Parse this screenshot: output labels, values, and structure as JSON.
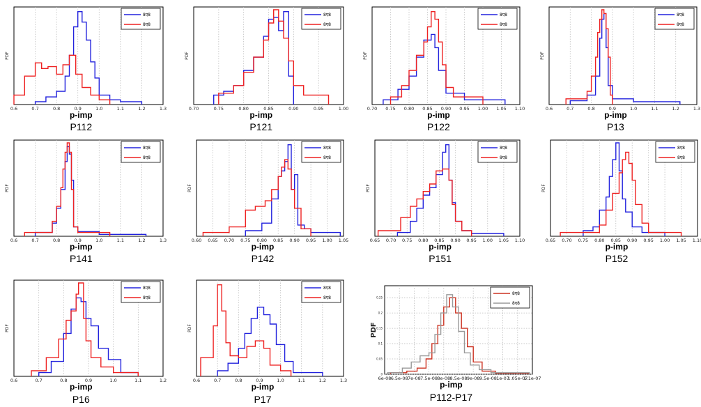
{
  "legend_labels": [
    "8ए8",
    "8ए8"
  ],
  "colors": {
    "blue": "#2222dd",
    "red": "#ee2222",
    "orange_red": "#cc3322",
    "gray": "#999999"
  },
  "chart_data": [
    {
      "id": "P112",
      "type": "histogram",
      "title": "P112",
      "xlabel": "p-imp",
      "ylabel": "PDF",
      "xlim": [
        0.6,
        1.3
      ],
      "xticks": [
        0.6,
        0.7,
        0.8,
        0.9,
        1.0,
        1.1,
        1.2,
        1.3
      ],
      "tick_labels": [
        "0.6",
        "0.7",
        "0.8",
        "0.9",
        "1.0",
        "1.1",
        "1.2",
        "1.3"
      ],
      "ymax": 1.0,
      "series": [
        {
          "color": "blue",
          "edges": [
            0.7,
            0.75,
            0.8,
            0.84,
            0.86,
            0.88,
            0.9,
            0.92,
            0.94,
            0.96,
            0.98,
            1.0,
            1.05,
            1.1,
            1.2
          ],
          "values": [
            0.03,
            0.08,
            0.14,
            0.3,
            0.52,
            0.82,
            0.98,
            0.87,
            0.68,
            0.45,
            0.28,
            0.1,
            0.05,
            0.03
          ]
        },
        {
          "color": "red",
          "edges": [
            0.6,
            0.65,
            0.7,
            0.73,
            0.76,
            0.8,
            0.83,
            0.86,
            0.89,
            0.92,
            0.96,
            1.0,
            1.05
          ],
          "values": [
            0.1,
            0.3,
            0.44,
            0.38,
            0.4,
            0.32,
            0.42,
            0.52,
            0.32,
            0.18,
            0.1,
            0.05
          ]
        }
      ]
    },
    {
      "id": "P121",
      "type": "histogram",
      "title": "P121",
      "xlabel": "p-imp",
      "ylabel": "PDF",
      "xlim": [
        0.7,
        1.0
      ],
      "xticks": [
        0.7,
        0.75,
        0.8,
        0.85,
        0.9,
        0.95,
        1.0
      ],
      "tick_labels": [
        "0.70",
        "0.75",
        "0.80",
        "0.85",
        "0.90",
        "0.95",
        "1.00"
      ],
      "ymax": 1.0,
      "series": [
        {
          "color": "blue",
          "edges": [
            0.74,
            0.76,
            0.78,
            0.8,
            0.82,
            0.84,
            0.85,
            0.86,
            0.87,
            0.88,
            0.89,
            0.9
          ],
          "values": [
            0.1,
            0.14,
            0.2,
            0.36,
            0.5,
            0.72,
            0.9,
            0.92,
            0.78,
            0.98,
            0.3
          ]
        },
        {
          "color": "red",
          "edges": [
            0.75,
            0.78,
            0.8,
            0.82,
            0.84,
            0.85,
            0.86,
            0.87,
            0.88,
            0.89,
            0.9,
            0.92,
            0.97
          ],
          "values": [
            0.12,
            0.2,
            0.34,
            0.5,
            0.68,
            0.86,
            1.0,
            0.88,
            0.7,
            0.46,
            0.2,
            0.1
          ]
        }
      ]
    },
    {
      "id": "P122",
      "type": "histogram",
      "title": "P122",
      "xlabel": "p-imp",
      "ylabel": "PDF",
      "xlim": [
        0.7,
        1.1
      ],
      "xticks": [
        0.7,
        0.75,
        0.8,
        0.85,
        0.9,
        0.95,
        1.0,
        1.05,
        1.1
      ],
      "tick_labels": [
        "0.70",
        "0.75",
        "0.80",
        "0.85",
        "0.90",
        "0.95",
        "1.00",
        "1.05",
        "1.10"
      ],
      "ymax": 1.0,
      "series": [
        {
          "color": "blue",
          "edges": [
            0.73,
            0.77,
            0.8,
            0.82,
            0.84,
            0.86,
            0.87,
            0.88,
            0.9,
            0.95,
            1.06
          ],
          "values": [
            0.05,
            0.16,
            0.3,
            0.5,
            0.68,
            0.74,
            0.6,
            0.36,
            0.12,
            0.05
          ]
        },
        {
          "color": "red",
          "edges": [
            0.75,
            0.78,
            0.8,
            0.82,
            0.84,
            0.85,
            0.86,
            0.87,
            0.88,
            0.89,
            0.9,
            0.92,
            1.0
          ],
          "values": [
            0.08,
            0.2,
            0.36,
            0.52,
            0.66,
            0.82,
            0.98,
            0.9,
            0.66,
            0.42,
            0.18,
            0.08
          ]
        }
      ]
    },
    {
      "id": "P13",
      "type": "histogram",
      "title": "P13",
      "xlabel": "p-imp",
      "ylabel": "PDF",
      "xlim": [
        0.6,
        1.3
      ],
      "xticks": [
        0.6,
        0.7,
        0.8,
        0.9,
        1.0,
        1.1,
        1.2,
        1.3
      ],
      "tick_labels": [
        "0.6",
        "0.7",
        "0.8",
        "0.9",
        "1.0",
        "1.1",
        "1.2",
        "1.3"
      ],
      "ymax": 1.0,
      "series": [
        {
          "color": "blue",
          "edges": [
            0.7,
            0.78,
            0.82,
            0.84,
            0.85,
            0.86,
            0.87,
            0.88,
            0.9,
            1.0,
            1.22
          ],
          "values": [
            0.04,
            0.1,
            0.3,
            0.7,
            0.9,
            0.96,
            0.6,
            0.2,
            0.06,
            0.03
          ]
        },
        {
          "color": "red",
          "edges": [
            0.68,
            0.78,
            0.8,
            0.82,
            0.83,
            0.84,
            0.85,
            0.86,
            0.87,
            0.88,
            0.89,
            0.9
          ],
          "values": [
            0.06,
            0.14,
            0.3,
            0.5,
            0.76,
            0.9,
            1.0,
            0.96,
            0.8,
            0.5,
            0.1
          ]
        }
      ]
    },
    {
      "id": "P141",
      "type": "histogram",
      "title": "P141",
      "xlabel": "p-imp",
      "ylabel": "PDF",
      "xlim": [
        0.6,
        1.3
      ],
      "xticks": [
        0.6,
        0.7,
        0.8,
        0.9,
        1.0,
        1.1,
        1.2,
        1.3
      ],
      "tick_labels": [
        "0.6",
        "0.7",
        "0.8",
        "0.9",
        "1.0",
        "1.1",
        "1.2",
        "1.3"
      ],
      "ymax": 1.0,
      "series": [
        {
          "color": "blue",
          "edges": [
            0.7,
            0.78,
            0.8,
            0.82,
            0.84,
            0.85,
            0.86,
            0.87,
            0.88,
            0.9,
            1.0,
            1.22
          ],
          "values": [
            0.04,
            0.14,
            0.3,
            0.5,
            0.8,
            0.96,
            0.88,
            0.6,
            0.1,
            0.05,
            0.02
          ]
        },
        {
          "color": "red",
          "edges": [
            0.65,
            0.78,
            0.8,
            0.82,
            0.83,
            0.84,
            0.85,
            0.86,
            0.87,
            0.88,
            0.9,
            1.05
          ],
          "values": [
            0.04,
            0.16,
            0.32,
            0.52,
            0.72,
            0.9,
            1.0,
            0.9,
            0.5,
            0.1,
            0.04
          ]
        }
      ]
    },
    {
      "id": "P142",
      "type": "histogram",
      "title": "P142",
      "xlabel": "p-imp",
      "ylabel": "PDF",
      "xlim": [
        0.6,
        1.05
      ],
      "xticks": [
        0.6,
        0.65,
        0.7,
        0.75,
        0.8,
        0.85,
        0.9,
        0.95,
        1.0,
        1.05
      ],
      "tick_labels": [
        "0.60",
        "0.65",
        "0.70",
        "0.75",
        "0.80",
        "0.85",
        "0.90",
        "0.95",
        "1.00",
        "1.05"
      ],
      "ymax": 1.0,
      "series": [
        {
          "color": "blue",
          "edges": [
            0.75,
            0.8,
            0.83,
            0.85,
            0.86,
            0.87,
            0.88,
            0.89,
            0.9,
            0.91,
            0.93,
            0.95,
            1.04
          ],
          "values": [
            0.06,
            0.14,
            0.4,
            0.64,
            0.7,
            0.8,
            0.98,
            0.5,
            0.66,
            0.12,
            0.08,
            0.04
          ]
        },
        {
          "color": "red",
          "edges": [
            0.62,
            0.7,
            0.75,
            0.78,
            0.81,
            0.83,
            0.85,
            0.86,
            0.87,
            0.88,
            0.89,
            0.9,
            0.92,
            0.95
          ],
          "values": [
            0.04,
            0.1,
            0.28,
            0.32,
            0.38,
            0.5,
            0.64,
            0.74,
            0.82,
            0.72,
            0.5,
            0.3,
            0.08
          ]
        }
      ]
    },
    {
      "id": "P151",
      "type": "histogram",
      "title": "P151",
      "xlabel": "p-imp",
      "ylabel": "PDF",
      "xlim": [
        0.65,
        1.1
      ],
      "xticks": [
        0.65,
        0.7,
        0.75,
        0.8,
        0.85,
        0.9,
        0.95,
        1.0,
        1.05,
        1.1
      ],
      "tick_labels": [
        "0.65",
        "0.70",
        "0.75",
        "0.80",
        "0.85",
        "0.90",
        "0.95",
        "1.00",
        "1.05",
        "1.10"
      ],
      "ymax": 1.0,
      "series": [
        {
          "color": "blue",
          "edges": [
            0.72,
            0.76,
            0.78,
            0.8,
            0.82,
            0.84,
            0.86,
            0.87,
            0.88,
            0.89,
            0.9,
            0.92,
            0.95,
            1.05
          ],
          "values": [
            0.04,
            0.16,
            0.3,
            0.44,
            0.52,
            0.66,
            0.9,
            0.98,
            0.6,
            0.36,
            0.16,
            0.06,
            0.03
          ]
        },
        {
          "color": "red",
          "edges": [
            0.66,
            0.73,
            0.76,
            0.78,
            0.8,
            0.82,
            0.84,
            0.86,
            0.88,
            0.89,
            0.9,
            0.92,
            0.95
          ],
          "values": [
            0.06,
            0.2,
            0.32,
            0.4,
            0.48,
            0.56,
            0.7,
            0.72,
            0.6,
            0.34,
            0.16,
            0.06
          ]
        }
      ]
    },
    {
      "id": "P152",
      "type": "histogram",
      "title": "P152",
      "xlabel": "p-imp",
      "ylabel": "PDF",
      "xlim": [
        0.65,
        1.1
      ],
      "xticks": [
        0.65,
        0.7,
        0.75,
        0.8,
        0.85,
        0.9,
        0.95,
        1.0,
        1.05,
        1.1
      ],
      "tick_labels": [
        "0.65",
        "0.70",
        "0.75",
        "0.80",
        "0.85",
        "0.90",
        "0.95",
        "1.00",
        "1.05",
        "1.10"
      ],
      "ymax": 1.0,
      "series": [
        {
          "color": "blue",
          "edges": [
            0.75,
            0.78,
            0.8,
            0.82,
            0.83,
            0.84,
            0.85,
            0.86,
            0.87,
            0.88,
            0.9,
            0.93,
            1.0
          ],
          "values": [
            0.06,
            0.1,
            0.28,
            0.42,
            0.64,
            0.82,
            1.0,
            0.7,
            0.4,
            0.26,
            0.1,
            0.04
          ]
        },
        {
          "color": "red",
          "edges": [
            0.68,
            0.8,
            0.82,
            0.84,
            0.86,
            0.87,
            0.88,
            0.89,
            0.9,
            0.91,
            0.93,
            0.95,
            1.05
          ],
          "values": [
            0.04,
            0.12,
            0.28,
            0.46,
            0.68,
            0.82,
            0.9,
            0.78,
            0.6,
            0.34,
            0.14,
            0.04
          ]
        }
      ]
    },
    {
      "id": "P16",
      "type": "histogram",
      "title": "P16",
      "xlabel": "p-imp",
      "ylabel": "PDF",
      "xlim": [
        0.6,
        1.2
      ],
      "xticks": [
        0.6,
        0.7,
        0.8,
        0.9,
        1.0,
        1.1,
        1.2
      ],
      "tick_labels": [
        "0.6",
        "0.7",
        "0.8",
        "0.9",
        "1.0",
        "1.1",
        "1.2"
      ],
      "ymax": 1.0,
      "series": [
        {
          "color": "blue",
          "edges": [
            0.7,
            0.75,
            0.8,
            0.83,
            0.85,
            0.87,
            0.89,
            0.91,
            0.94,
            0.98,
            1.03,
            1.1
          ],
          "values": [
            0.04,
            0.16,
            0.46,
            0.72,
            0.84,
            0.8,
            0.62,
            0.54,
            0.3,
            0.18,
            0.04
          ]
        },
        {
          "color": "red",
          "edges": [
            0.67,
            0.73,
            0.78,
            0.81,
            0.83,
            0.85,
            0.86,
            0.88,
            0.89,
            0.91,
            0.95,
            1.0,
            1.1
          ],
          "values": [
            0.06,
            0.2,
            0.4,
            0.6,
            0.7,
            0.88,
            1.0,
            0.62,
            0.38,
            0.2,
            0.1,
            0.04
          ]
        }
      ]
    },
    {
      "id": "P17",
      "type": "histogram",
      "title": "P17",
      "xlabel": "p-imp",
      "ylabel": "PDF",
      "xlim": [
        0.6,
        1.3
      ],
      "xticks": [
        0.6,
        0.7,
        0.8,
        0.9,
        1.0,
        1.1,
        1.2,
        1.3
      ],
      "tick_labels": [
        "0.6",
        "0.7",
        "0.8",
        "0.9",
        "1.0",
        "1.1",
        "1.2",
        "1.3"
      ],
      "ymax": 1.0,
      "series": [
        {
          "color": "blue",
          "edges": [
            0.7,
            0.75,
            0.8,
            0.83,
            0.86,
            0.89,
            0.92,
            0.95,
            0.98,
            1.02,
            1.06,
            1.2
          ],
          "values": [
            0.06,
            0.14,
            0.3,
            0.46,
            0.62,
            0.74,
            0.66,
            0.56,
            0.34,
            0.16,
            0.04
          ]
        },
        {
          "color": "red",
          "edges": [
            0.62,
            0.68,
            0.7,
            0.72,
            0.74,
            0.76,
            0.8,
            0.84,
            0.88,
            0.9,
            0.92,
            0.95,
            1.0,
            1.05
          ],
          "values": [
            0.2,
            0.54,
            0.98,
            0.7,
            0.36,
            0.22,
            0.2,
            0.32,
            0.38,
            0.38,
            0.3,
            0.12,
            0.06
          ]
        }
      ]
    },
    {
      "id": "P112-P17",
      "type": "histogram",
      "title": "P112-P17",
      "xlabel": "p-imp",
      "ylabel": "PDF",
      "xlim": [
        0,
        10
      ],
      "xticks": [
        0,
        1,
        2,
        3,
        4,
        5,
        6,
        7,
        8,
        9,
        10
      ],
      "tick_labels": [
        "6e-08",
        "6.5e-08",
        "7e-08",
        "7.5e-08",
        "8e-08",
        "8.5e-08",
        "9e-08",
        "9.5e-08",
        "1e-07",
        "1.05e-07",
        "1.1e-07"
      ],
      "yticks": [
        0,
        0.05,
        0.1,
        0.15,
        0.2,
        0.25
      ],
      "ytick_labels": [
        "0",
        "0.05",
        "0.1",
        "0.15",
        "0.2",
        "0.25"
      ],
      "ymax": 0.28,
      "grid_full": true,
      "series": [
        {
          "color": "orange_red",
          "edges": [
            0.4,
            1.5,
            2.2,
            2.8,
            3.2,
            3.6,
            4.0,
            4.4,
            4.8,
            5.2,
            5.6,
            6.0,
            6.6,
            7.5,
            9.8
          ],
          "values": [
            0.005,
            0.01,
            0.02,
            0.05,
            0.1,
            0.16,
            0.22,
            0.25,
            0.2,
            0.15,
            0.09,
            0.04,
            0.01,
            0.003
          ]
        },
        {
          "color": "gray",
          "edges": [
            0.2,
            1.2,
            1.8,
            2.4,
            3.0,
            3.4,
            3.8,
            4.2,
            4.6,
            5.0,
            5.4,
            5.8,
            6.4,
            7.2,
            9.8
          ],
          "values": [
            0.005,
            0.02,
            0.04,
            0.06,
            0.07,
            0.13,
            0.2,
            0.26,
            0.22,
            0.14,
            0.07,
            0.03,
            0.015,
            0.005
          ]
        }
      ]
    }
  ]
}
